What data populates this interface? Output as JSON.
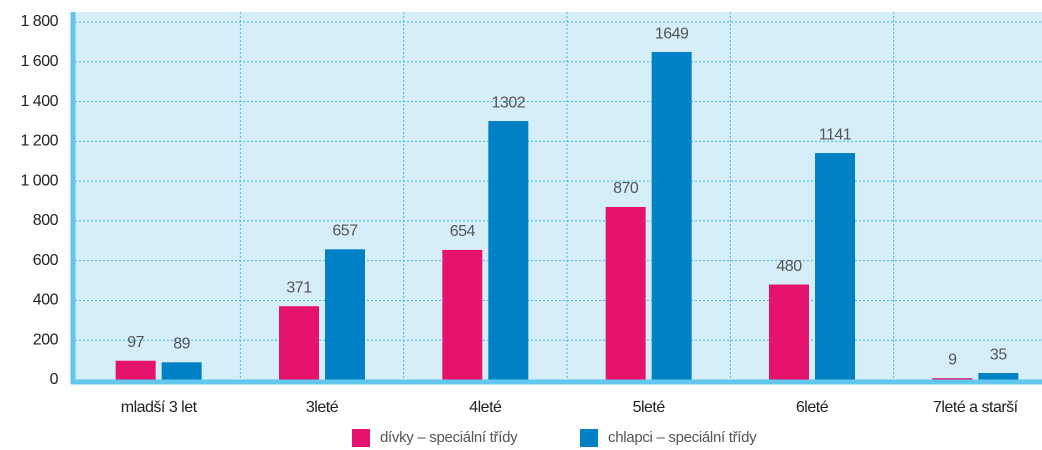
{
  "chart_data": {
    "type": "bar",
    "categories": [
      "mladší 3 let",
      "3leté",
      "4leté",
      "5leté",
      "6leté",
      "7leté a starší"
    ],
    "series": [
      {
        "name": "dívky – speciální třídy",
        "color": "#e5136e",
        "values": [
          97,
          371,
          654,
          870,
          480,
          9
        ]
      },
      {
        "name": "chlapci – speciální třídy",
        "color": "#0081c6",
        "values": [
          89,
          657,
          1302,
          1649,
          1141,
          35
        ]
      }
    ],
    "ylim": [
      0,
      1800
    ],
    "yticks": [
      0,
      200,
      400,
      600,
      800,
      {
        "value": 1000,
        "label": "1 000"
      },
      {
        "value": 1200,
        "label": "1 200"
      },
      {
        "value": 1400,
        "label": "1 400"
      },
      {
        "value": 1600,
        "label": "1 600"
      },
      {
        "value": 1800,
        "label": "1 800"
      }
    ],
    "grid": true,
    "legend": "bottom"
  }
}
